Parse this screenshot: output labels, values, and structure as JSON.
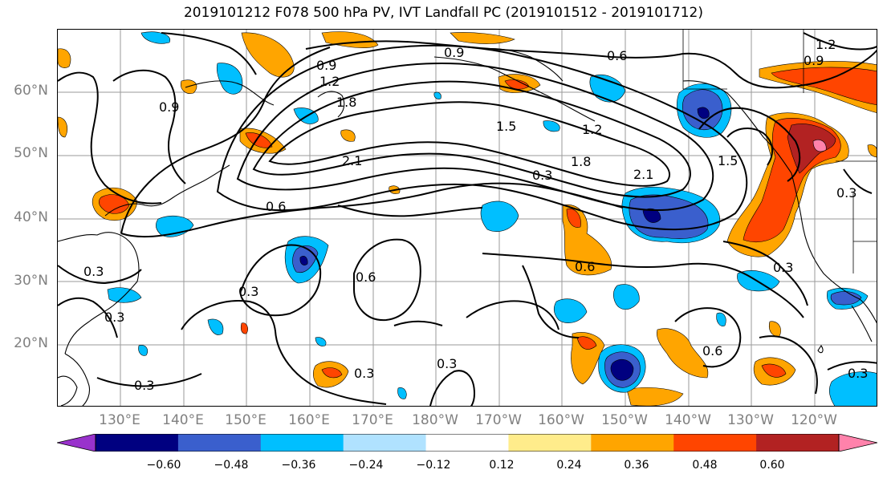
{
  "title": "2019101212 F078 500 hPa PV, IVT Landfall PC (2019101512 - 2019101712)",
  "lat_labels": [
    "60°N",
    "50°N",
    "40°N",
    "30°N",
    "20°N"
  ],
  "lon_labels": [
    "130°E",
    "140°E",
    "150°E",
    "160°E",
    "170°E",
    "180°W",
    "170°W",
    "160°W",
    "150°W",
    "140°W",
    "130°W",
    "120°W"
  ],
  "contour_labels": [
    "0.9",
    "0.6",
    "0.9",
    "1.2",
    "1.8",
    "0.9",
    "1.5",
    "1.2",
    "2.1",
    "1.8",
    "2.1",
    "0.3",
    "0.6",
    "1.5",
    "0.3",
    "0.3",
    "0.3",
    "0.6",
    "0.3",
    "0.3",
    "0.3",
    "0.6",
    "0.6",
    "0.3",
    "0.3",
    "0.3",
    "1.2",
    "0.9"
  ],
  "colorbar": {
    "ticks": [
      "−0.60",
      "−0.48",
      "−0.36",
      "−0.24",
      "−0.12",
      "0.12",
      "0.24",
      "0.36",
      "0.48",
      "0.60"
    ],
    "colors": [
      "#9932cc",
      "#000080",
      "#3a5fcd",
      "#00bfff",
      "#b0e2ff",
      "#ffffff",
      "#ffec8b",
      "#ffa500",
      "#ff4500",
      "#b22222",
      "#ff82ab"
    ]
  },
  "fill_colors": {
    "neg1": "#b0e2ff",
    "neg2": "#00bfff",
    "neg3": "#3a5fcd",
    "neg4": "#000080",
    "pos1": "#ffec8b",
    "pos2": "#ffa500",
    "pos3": "#ff4500",
    "pos4": "#b22222",
    "pos5": "#ff82ab"
  }
}
